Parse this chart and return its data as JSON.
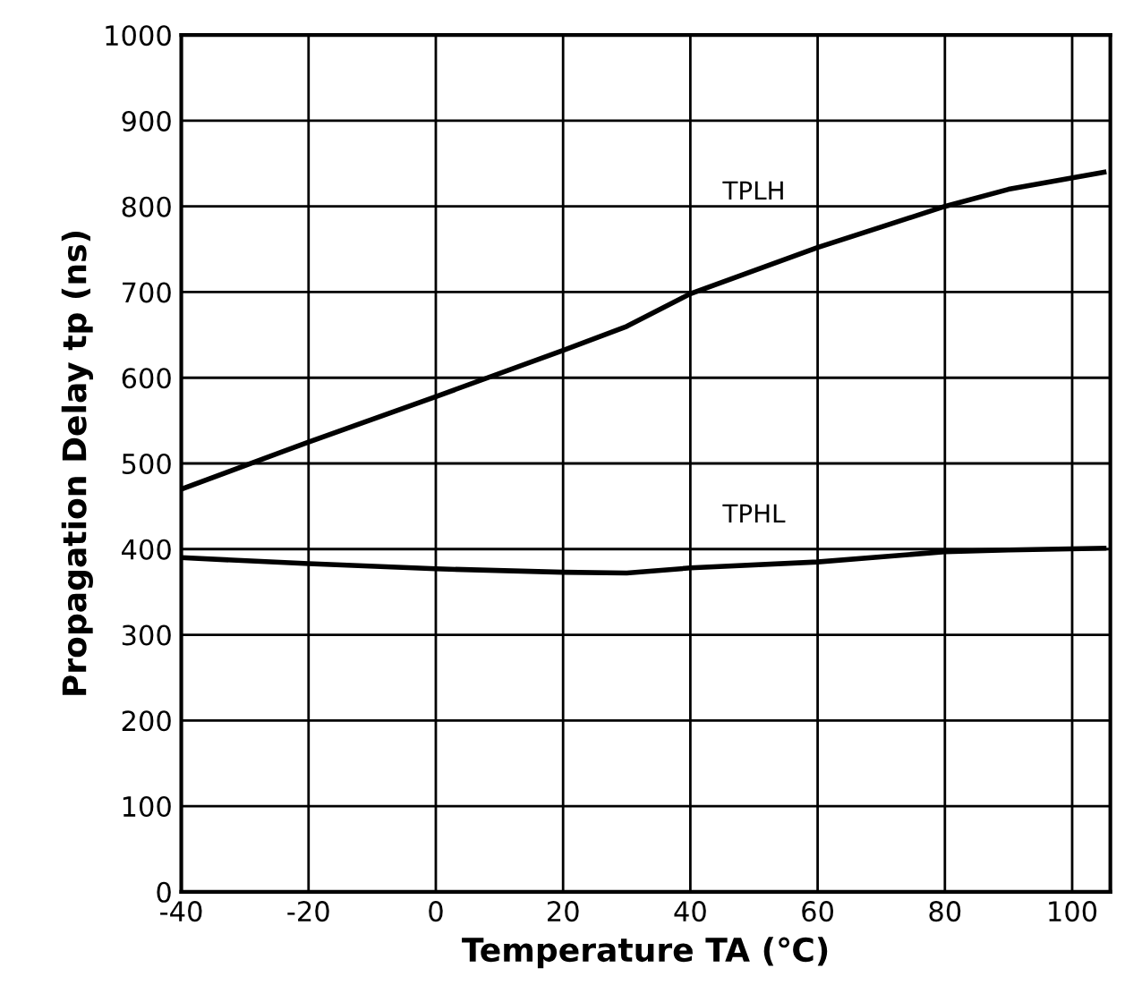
{
  "chart_data": {
    "type": "line",
    "xlabel": "Temperature TA (℃)",
    "ylabel": "Propagation Delay tp (ns)",
    "series": [
      {
        "name": "TPLH",
        "color": "#000000",
        "x": [
          -40,
          -20,
          0,
          20,
          30,
          40,
          60,
          80,
          90,
          105
        ],
        "values": [
          470,
          525,
          578,
          632,
          660,
          698,
          752,
          800,
          820,
          840
        ]
      },
      {
        "name": "TPHL",
        "color": "#000000",
        "x": [
          -40,
          -20,
          0,
          20,
          30,
          40,
          60,
          80,
          90,
          105
        ],
        "values": [
          390,
          383,
          377,
          373,
          372,
          378,
          385,
          397,
          399,
          401
        ]
      }
    ],
    "xlim": [
      -40,
      106
    ],
    "xticks": [
      -40,
      -20,
      0,
      20,
      40,
      60,
      80,
      100
    ],
    "ylim": [
      0,
      1000
    ],
    "yticks": [
      0,
      100,
      200,
      300,
      400,
      500,
      600,
      700,
      800,
      900,
      1000
    ],
    "grid": true,
    "legend": false,
    "marker": "none",
    "line_style": "solid"
  }
}
